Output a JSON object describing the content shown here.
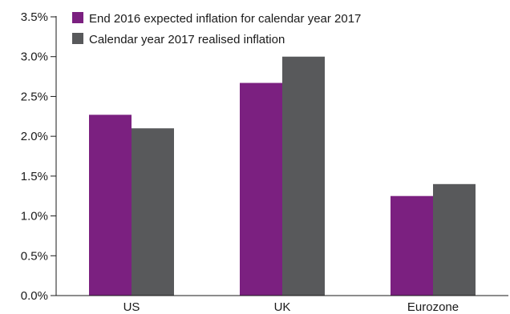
{
  "chart_data": {
    "type": "bar",
    "title": "",
    "xlabel": "",
    "ylabel": "",
    "categories": [
      "US",
      "UK",
      "Eurozone"
    ],
    "series": [
      {
        "name": "End 2016 expected inflation for  calendar year 2017",
        "values": [
          2.27,
          2.67,
          1.25
        ],
        "color": "#7b2080"
      },
      {
        "name": "Calendar year 2017 realised inflation",
        "values": [
          2.1,
          3.0,
          1.4
        ],
        "color": "#58595b"
      }
    ],
    "ylim": [
      0,
      3.5
    ],
    "yticks": [
      0,
      0.5,
      1.0,
      1.5,
      2.0,
      2.5,
      3.0,
      3.5
    ],
    "ytick_labels": [
      "0.0%",
      "0.5%",
      "1.0%",
      "1.5%",
      "2.0%",
      "2.5%",
      "3.0%",
      "3.5%"
    ],
    "grid": false,
    "legend_position": "top-left"
  }
}
